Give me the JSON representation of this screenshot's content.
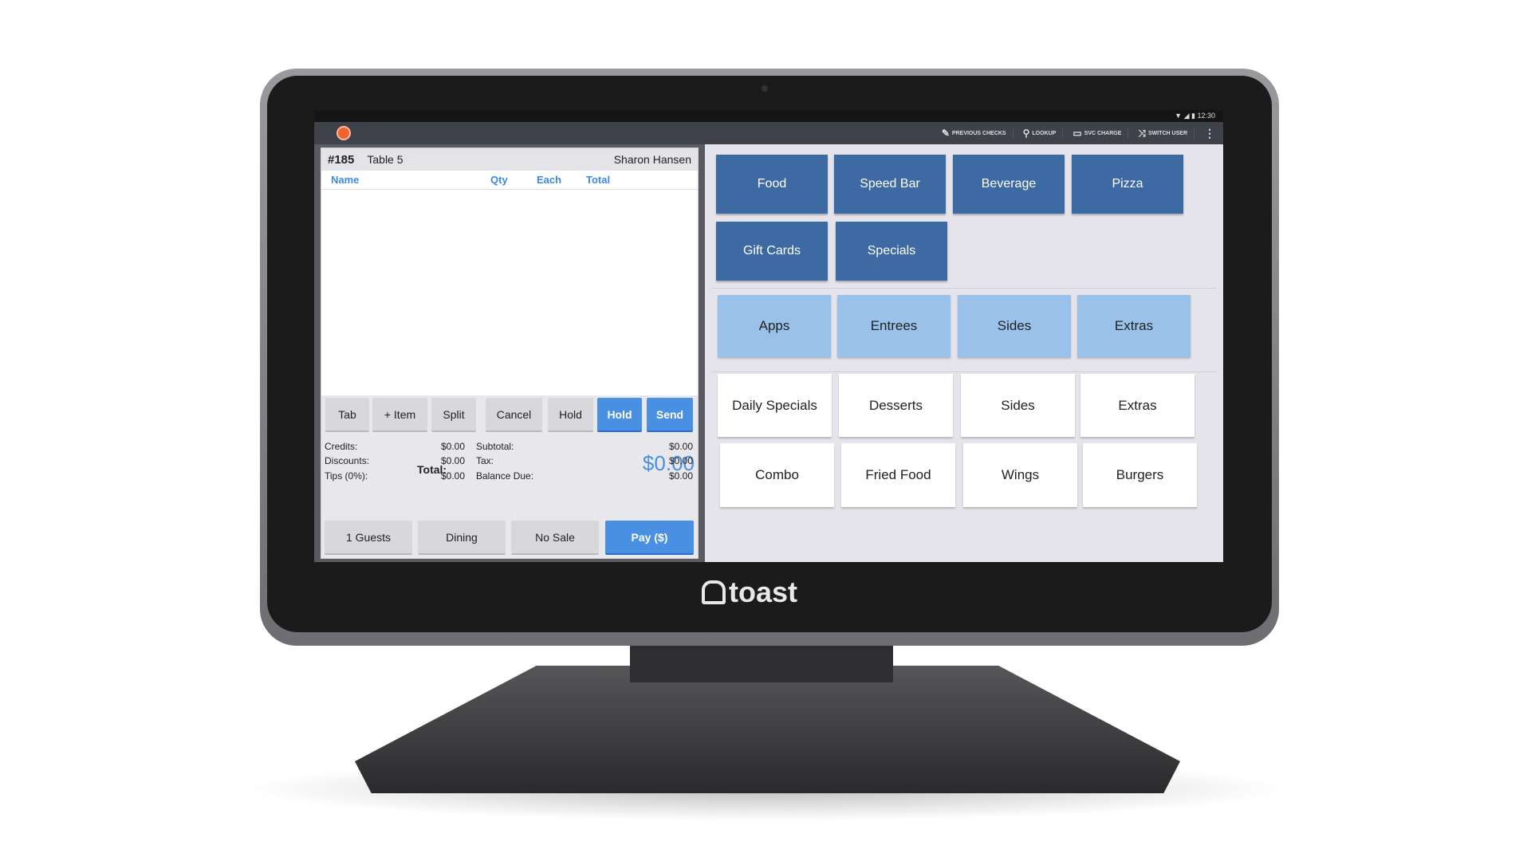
{
  "status_bar": {
    "time": "12:30"
  },
  "app_bar": {
    "actions": [
      {
        "label": "PREVIOUS CHECKS",
        "icon": "pencil-icon",
        "glyph": "✎"
      },
      {
        "label": "LOOKUP",
        "icon": "search-icon",
        "glyph": "⚲"
      },
      {
        "label": "SVC CHARGE",
        "icon": "register-icon",
        "glyph": "▭"
      },
      {
        "label": "SWITCH USER",
        "icon": "shuffle-icon",
        "glyph": "⤨"
      }
    ],
    "menu_glyph": "⋮"
  },
  "check": {
    "number": "#185",
    "table": "Table 5",
    "server": "Sharon Hansen",
    "columns": {
      "name": "Name",
      "qty": "Qty",
      "each": "Each",
      "total": "Total"
    },
    "actions": [
      "Tab",
      "+ Item",
      "Split",
      "Cancel",
      "Hold",
      "Hold",
      "Send"
    ],
    "totals_left": [
      {
        "label": "Credits:",
        "value": "$0.00"
      },
      {
        "label": "Discounts:",
        "value": "$0.00"
      },
      {
        "label": "Tips (0%):",
        "value": "$0.00"
      }
    ],
    "totals_right": [
      {
        "label": "Subtotal:",
        "value": "$0.00"
      },
      {
        "label": "Tax:",
        "value": "$0.00"
      },
      {
        "label": "Balance Due:",
        "value": "$0.00"
      }
    ],
    "total_label": "Total:",
    "total_value": "$0.00",
    "bottom": [
      "1 Guests",
      "Dining",
      "No Sale",
      "Pay ($)"
    ]
  },
  "menu": {
    "categories": [
      "Food",
      "Speed Bar",
      "Beverage",
      "Pizza",
      "Gift Cards",
      "Specials"
    ],
    "groups": [
      "Apps",
      "Entrees",
      "Sides",
      "Extras"
    ],
    "items": [
      "Daily Specials",
      "Desserts",
      "Sides",
      "Extras",
      "Combo",
      "Fried Food",
      "Wings",
      "Burgers"
    ]
  },
  "brand": {
    "logo": "toast"
  },
  "colors": {
    "accent": "#4a90e2",
    "category": "#3d6aa3",
    "group": "#9ac1ea",
    "logo_orange": "#f0632f"
  }
}
